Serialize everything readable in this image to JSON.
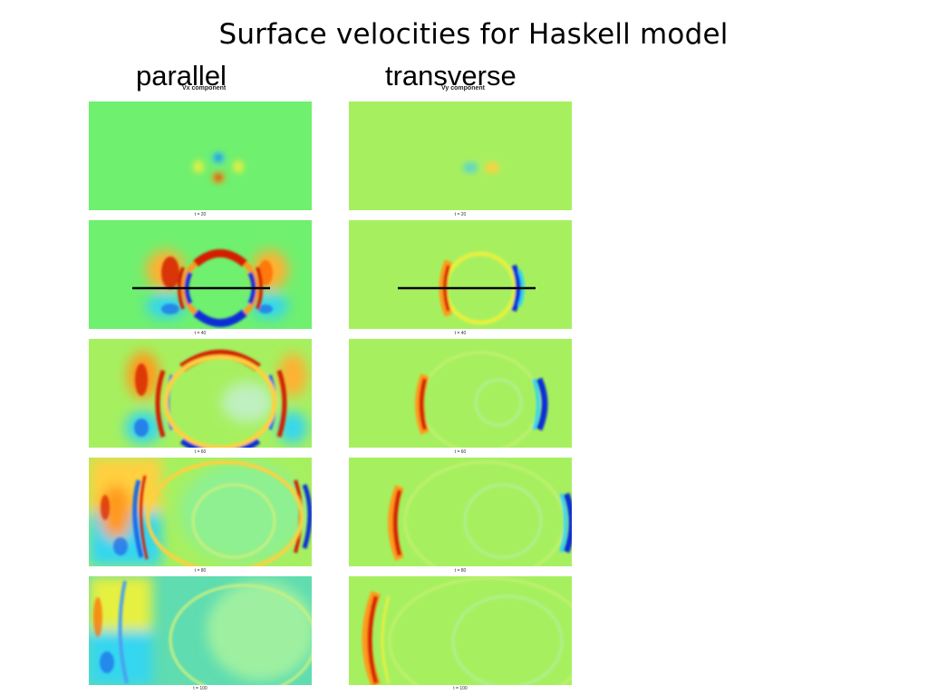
{
  "slide": {
    "title": "Surface velocities for Haskell model",
    "columns": [
      {
        "heading": "parallel",
        "component_label": "Vx component"
      },
      {
        "heading": "transverse",
        "component_label": "Vy component"
      }
    ],
    "time_labels": [
      "t = 20",
      "t = 40",
      "t = 60",
      "t = 80",
      "t = 100"
    ],
    "colors": {
      "background_green": "#6ff06f",
      "background_yellowgreen": "#a6f060",
      "red": "#d41e00",
      "blue": "#0a2fd6",
      "orange": "#ff9a1a",
      "cyan": "#34d6f0",
      "line": "#000000"
    }
  }
}
